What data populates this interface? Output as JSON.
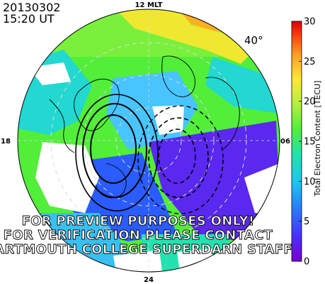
{
  "header": {
    "date": "20130302",
    "time": "15:20 UT"
  },
  "map": {
    "mlt_labels": {
      "top": "12 MLT",
      "left": "18",
      "right": "06",
      "bottom": "24"
    },
    "latitude_label": "40°",
    "watermark_lines": [
      "FOR PREVIEW PURPOSES ONLY!",
      "FOR VERIFICATION PLEASE CONTACT",
      "DARTMOUTH COLLEGE SUPERDARN STAFF"
    ]
  },
  "colorbar": {
    "title": "Total Electron Content [TECU]",
    "ticks": [
      "0",
      "5",
      "10",
      "15",
      "20",
      "25",
      "30"
    ],
    "min": 0,
    "max": 30,
    "colors": [
      "#7a00d6",
      "#4a2cff",
      "#2a7cff",
      "#18c8f0",
      "#1ee6a8",
      "#52ee3a",
      "#b8f03a",
      "#ffe830",
      "#ffa020",
      "#ff4010",
      "#e00000"
    ]
  },
  "styles": {
    "background": "#ffffff",
    "grid_color": "#cccccc",
    "coast_color": "#000000"
  }
}
